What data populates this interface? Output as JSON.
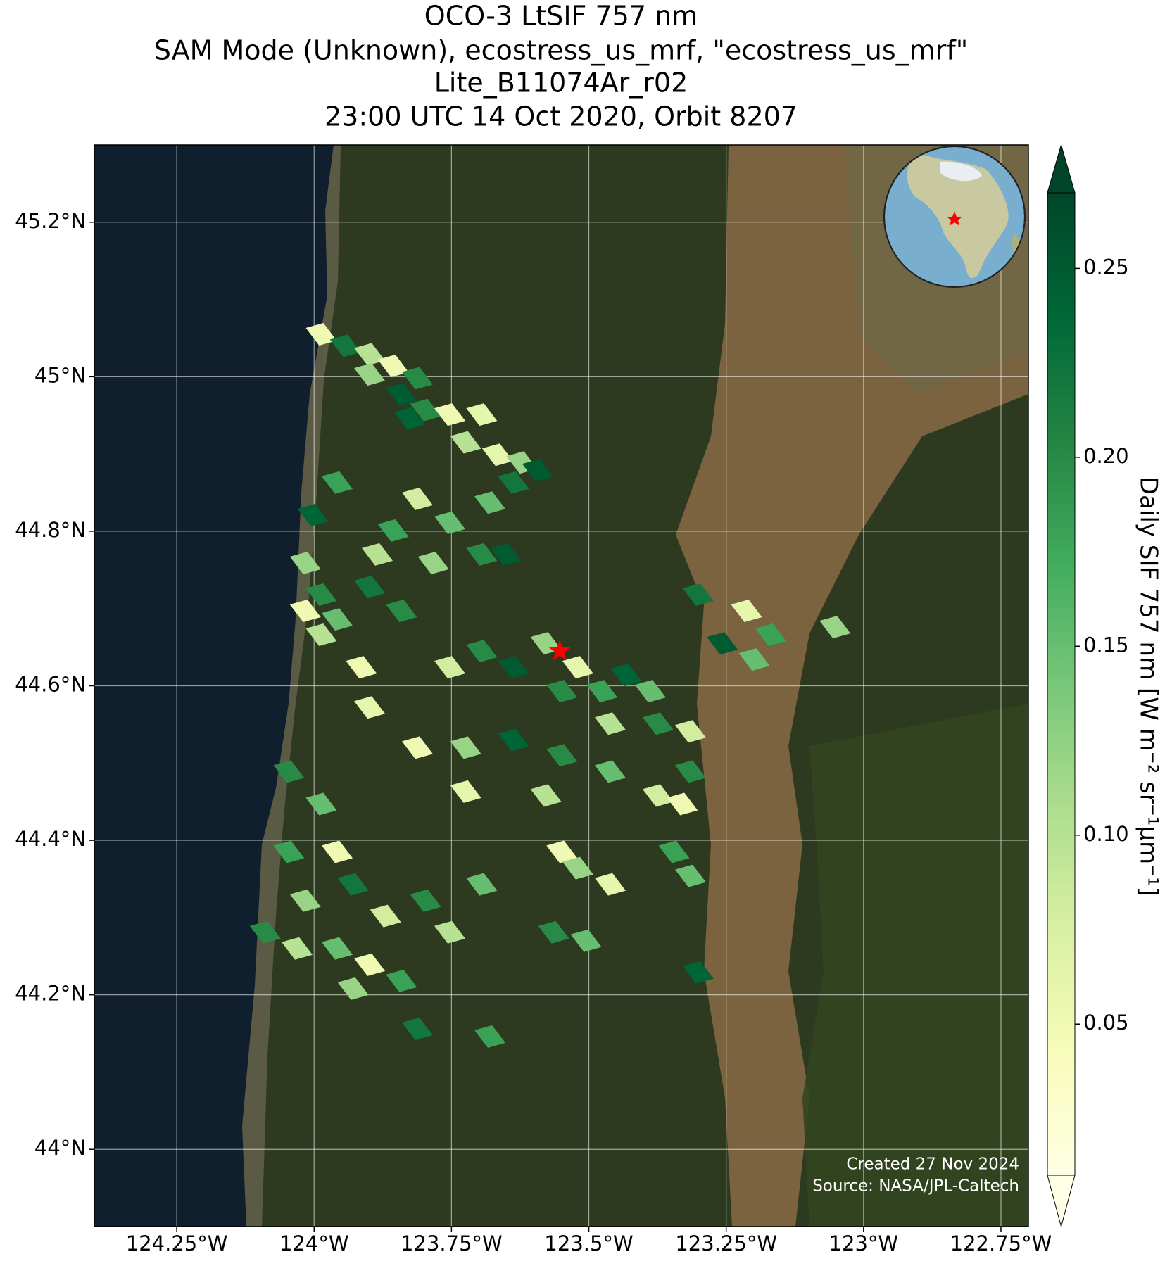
{
  "map_data": {
    "type": "footprint-map",
    "title_lines": [
      "OCO-3 LtSIF 757 nm",
      "SAM Mode (Unknown), ecostress_us_mrf, \"ecostress_us_mrf\"",
      "Lite_B11074Ar_r02",
      "23:00 UTC 14 Oct 2020, Orbit 8207"
    ],
    "xlim": [
      -124.4,
      -122.7
    ],
    "ylim": [
      43.9,
      45.3
    ],
    "xticks": [
      {
        "value": -124.25,
        "label": "124.25°W"
      },
      {
        "value": -124,
        "label": "124°W"
      },
      {
        "value": -123.75,
        "label": "123.75°W"
      },
      {
        "value": -123.5,
        "label": "123.5°W"
      },
      {
        "value": -123.25,
        "label": "123.25°W"
      },
      {
        "value": -123,
        "label": "123°W"
      },
      {
        "value": -122.75,
        "label": "122.75°W"
      }
    ],
    "yticks": [
      {
        "value": 44.0,
        "label": "44°N"
      },
      {
        "value": 44.2,
        "label": "44.2°N"
      },
      {
        "value": 44.4,
        "label": "44.4°N"
      },
      {
        "value": 44.6,
        "label": "44.6°N"
      },
      {
        "value": 44.8,
        "label": "44.8°N"
      },
      {
        "value": 45.0,
        "label": "45°N"
      },
      {
        "value": 45.2,
        "label": "45.2°N"
      }
    ],
    "grid": true,
    "colorbar_label": "Daily SIF 757 nm [W m⁻² sr⁻¹µm⁻¹]",
    "clim": [
      0.01,
      0.27
    ],
    "cticks": [
      0.05,
      0.1,
      0.15,
      0.2,
      0.25
    ],
    "cticks_labels": [
      "0.05",
      "0.10",
      "0.15",
      "0.20",
      "0.25"
    ],
    "colormap": [
      "#ffffe5",
      "#f7fcb9",
      "#d9f0a3",
      "#addd8e",
      "#78c679",
      "#41ab5d",
      "#238443",
      "#006837",
      "#004529"
    ],
    "target": {
      "lon": -123.553,
      "lat": 44.645,
      "color": "#ff0000"
    },
    "credits": [
      "Created 27 Nov 2024",
      "Source: NASA/JPL-Caltech"
    ],
    "footprints": [
      [
        -123.987,
        45.055,
        0.05
      ],
      [
        -123.943,
        45.04,
        0.22
      ],
      [
        -123.899,
        45.029,
        0.1
      ],
      [
        -123.856,
        45.014,
        0.05
      ],
      [
        -123.812,
        44.998,
        0.2
      ],
      [
        -123.899,
        45.003,
        0.12
      ],
      [
        -123.841,
        44.977,
        0.25
      ],
      [
        -123.797,
        44.957,
        0.2
      ],
      [
        -123.826,
        44.946,
        0.24
      ],
      [
        -123.753,
        44.951,
        0.05
      ],
      [
        -123.695,
        44.951,
        0.06
      ],
      [
        -123.724,
        44.915,
        0.1
      ],
      [
        -123.666,
        44.899,
        0.06
      ],
      [
        -123.622,
        44.889,
        0.12
      ],
      [
        -123.637,
        44.863,
        0.22
      ],
      [
        -123.593,
        44.879,
        0.25
      ],
      [
        -123.68,
        44.837,
        0.15
      ],
      [
        -123.812,
        44.842,
        0.08
      ],
      [
        -123.753,
        44.811,
        0.15
      ],
      [
        -123.695,
        44.77,
        0.2
      ],
      [
        -123.651,
        44.77,
        0.25
      ],
      [
        -123.783,
        44.759,
        0.12
      ],
      [
        -123.856,
        44.801,
        0.18
      ],
      [
        -123.885,
        44.77,
        0.1
      ],
      [
        -123.958,
        44.863,
        0.18
      ],
      [
        -124.002,
        44.821,
        0.24
      ],
      [
        -124.016,
        44.759,
        0.12
      ],
      [
        -123.987,
        44.718,
        0.2
      ],
      [
        -123.958,
        44.686,
        0.15
      ],
      [
        -123.899,
        44.728,
        0.22
      ],
      [
        -123.841,
        44.697,
        0.2
      ],
      [
        -124.016,
        44.697,
        0.05
      ],
      [
        -123.987,
        44.666,
        0.1
      ],
      [
        -123.914,
        44.624,
        0.05
      ],
      [
        -123.753,
        44.624,
        0.08
      ],
      [
        -123.695,
        44.645,
        0.2
      ],
      [
        -123.637,
        44.624,
        0.25
      ],
      [
        -123.578,
        44.655,
        0.12
      ],
      [
        -123.52,
        44.624,
        0.06
      ],
      [
        -123.549,
        44.593,
        0.2
      ],
      [
        -123.476,
        44.593,
        0.18
      ],
      [
        -123.432,
        44.614,
        0.24
      ],
      [
        -123.388,
        44.593,
        0.15
      ],
      [
        -123.461,
        44.551,
        0.1
      ],
      [
        -123.374,
        44.551,
        0.2
      ],
      [
        -123.315,
        44.541,
        0.08
      ],
      [
        -123.301,
        44.718,
        0.22
      ],
      [
        -123.213,
        44.697,
        0.06
      ],
      [
        -123.169,
        44.666,
        0.18
      ],
      [
        -123.257,
        44.655,
        0.25
      ],
      [
        -123.199,
        44.634,
        0.15
      ],
      [
        -123.052,
        44.676,
        0.12
      ],
      [
        -123.899,
        44.572,
        0.06
      ],
      [
        -123.812,
        44.52,
        0.05
      ],
      [
        -123.724,
        44.52,
        0.12
      ],
      [
        -123.637,
        44.53,
        0.24
      ],
      [
        -123.549,
        44.51,
        0.2
      ],
      [
        -123.461,
        44.489,
        0.15
      ],
      [
        -123.374,
        44.458,
        0.08
      ],
      [
        -123.315,
        44.489,
        0.2
      ],
      [
        -123.33,
        44.447,
        0.05
      ],
      [
        -123.578,
        44.458,
        0.1
      ],
      [
        -123.724,
        44.463,
        0.06
      ],
      [
        -124.046,
        44.489,
        0.2
      ],
      [
        -123.987,
        44.447,
        0.15
      ],
      [
        -123.958,
        44.385,
        0.05
      ],
      [
        -124.046,
        44.385,
        0.18
      ],
      [
        -124.016,
        44.322,
        0.12
      ],
      [
        -123.929,
        44.343,
        0.22
      ],
      [
        -123.87,
        44.302,
        0.08
      ],
      [
        -123.797,
        44.322,
        0.2
      ],
      [
        -123.753,
        44.281,
        0.1
      ],
      [
        -123.695,
        44.343,
        0.15
      ],
      [
        -123.549,
        44.385,
        0.05
      ],
      [
        -123.52,
        44.364,
        0.12
      ],
      [
        -123.461,
        44.343,
        0.06
      ],
      [
        -123.345,
        44.385,
        0.18
      ],
      [
        -123.315,
        44.354,
        0.15
      ],
      [
        -124.089,
        44.281,
        0.2
      ],
      [
        -124.031,
        44.26,
        0.1
      ],
      [
        -123.958,
        44.26,
        0.15
      ],
      [
        -123.899,
        44.239,
        0.05
      ],
      [
        -123.841,
        44.218,
        0.18
      ],
      [
        -123.929,
        44.208,
        0.12
      ],
      [
        -123.812,
        44.156,
        0.22
      ],
      [
        -123.68,
        44.146,
        0.18
      ],
      [
        -123.564,
        44.281,
        0.2
      ],
      [
        -123.505,
        44.27,
        0.15
      ],
      [
        -123.301,
        44.229,
        0.24
      ]
    ]
  }
}
